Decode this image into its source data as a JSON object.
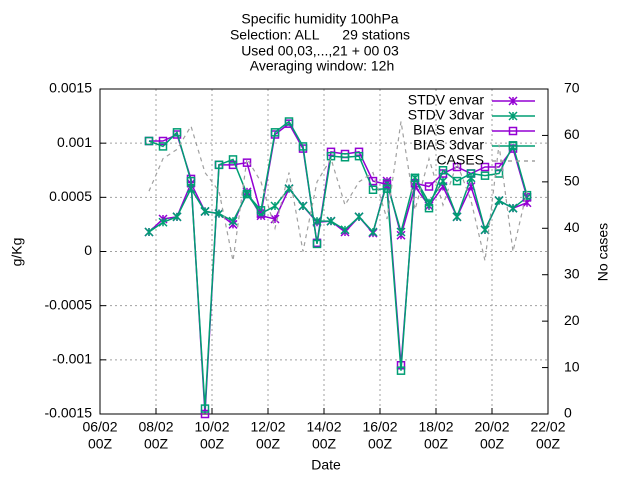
{
  "chart_data": {
    "type": "line",
    "title": [
      "Specific humidity 100hPa",
      "Selection: ALL      29 stations",
      "Used 00,03,...,21 + 00 03",
      "Averaging window: 12h"
    ],
    "xlabel": "Date",
    "ylabel": "g/Kg",
    "y2label": "No cases",
    "x": [
      "07/02 18Z",
      "08/02 06Z",
      "08/02 18Z",
      "09/02 06Z",
      "09/02 18Z",
      "10/02 06Z",
      "10/02 18Z",
      "11/02 06Z",
      "11/02 18Z",
      "12/02 06Z",
      "12/02 18Z",
      "13/02 06Z",
      "13/02 18Z",
      "14/02 06Z",
      "14/02 18Z",
      "15/02 06Z",
      "15/02 18Z",
      "16/02 06Z",
      "16/02 18Z",
      "17/02 06Z",
      "17/02 18Z",
      "18/02 06Z",
      "18/02 18Z",
      "19/02 06Z",
      "19/02 18Z",
      "20/02 06Z",
      "20/02 18Z",
      "21/02 06Z"
    ],
    "xlim": [
      "06/02 00Z",
      "22/02 00Z"
    ],
    "xticks": [
      {
        "value": "06/02 00Z",
        "label": [
          "06/02",
          "00Z"
        ]
      },
      {
        "value": "08/02 00Z",
        "label": [
          "08/02",
          "00Z"
        ]
      },
      {
        "value": "10/02 00Z",
        "label": [
          "10/02",
          "00Z"
        ]
      },
      {
        "value": "12/02 00Z",
        "label": [
          "12/02",
          "00Z"
        ]
      },
      {
        "value": "14/02 00Z",
        "label": [
          "14/02",
          "00Z"
        ]
      },
      {
        "value": "16/02 00Z",
        "label": [
          "16/02",
          "00Z"
        ]
      },
      {
        "value": "18/02 00Z",
        "label": [
          "18/02",
          "00Z"
        ]
      },
      {
        "value": "20/02 00Z",
        "label": [
          "20/02",
          "00Z"
        ]
      },
      {
        "value": "22/02 00Z",
        "label": [
          "22/02",
          "00Z"
        ]
      }
    ],
    "ylim": [
      -0.0015,
      0.0015
    ],
    "yticks": [
      -0.0015,
      -0.001,
      -0.0005,
      0,
      0.0005,
      0.001,
      0.0015
    ],
    "y2lim": [
      0,
      70
    ],
    "y2ticks": [
      0,
      10,
      20,
      30,
      40,
      50,
      60,
      70
    ],
    "grid": true,
    "legend": "top-right",
    "series": [
      {
        "name": "STDV envar",
        "color": "#9400d3",
        "marker": "x",
        "values": [
          0.00018,
          0.0003,
          0.00032,
          0.00063,
          0.00037,
          0.00035,
          0.00025,
          0.00055,
          0.00033,
          0.0003,
          0.00058,
          0.00042,
          0.00027,
          0.00028,
          0.00018,
          0.00032,
          0.00017,
          0.00065,
          0.00015,
          0.0006,
          0.00042,
          0.0006,
          0.00032,
          0.0006,
          0.0002,
          0.00047,
          0.0004,
          0.00045
        ]
      },
      {
        "name": "STDV 3dvar",
        "color": "#009e73",
        "marker": "x",
        "values": [
          0.00018,
          0.00027,
          0.00032,
          0.00058,
          0.00037,
          0.00035,
          0.00028,
          0.00053,
          0.00035,
          0.00042,
          0.00058,
          0.00042,
          0.00028,
          0.00028,
          0.0002,
          0.00032,
          0.00018,
          0.00063,
          0.00018,
          0.00068,
          0.00045,
          0.00065,
          0.00032,
          0.00068,
          0.0002,
          0.00047,
          0.0004,
          0.0005
        ]
      },
      {
        "name": "BIAS envar",
        "color": "#9400d3",
        "marker": "square",
        "values": [
          0.00102,
          0.00102,
          0.00108,
          0.00067,
          -0.0015,
          0.0008,
          0.0008,
          0.00082,
          0.00035,
          0.00108,
          0.00118,
          0.00095,
          8e-05,
          0.00092,
          0.0009,
          0.00092,
          0.00065,
          0.00062,
          -0.00105,
          0.00063,
          0.0006,
          0.00072,
          0.00078,
          0.00072,
          0.00078,
          0.00078,
          0.00095,
          0.0005
        ]
      },
      {
        "name": "BIAS 3dvar",
        "color": "#009e73",
        "marker": "square",
        "values": [
          0.00102,
          0.00097,
          0.0011,
          0.00065,
          -0.00145,
          0.0008,
          0.00085,
          0.00053,
          0.00038,
          0.0011,
          0.0012,
          0.00097,
          7e-05,
          0.00088,
          0.00087,
          0.00088,
          0.00057,
          0.00058,
          -0.0011,
          0.00068,
          0.0004,
          0.00075,
          0.00065,
          0.00072,
          0.0007,
          0.00072,
          0.00098,
          0.00052
        ]
      },
      {
        "name": "CASES",
        "color": "#a0a0a0",
        "axis": "y2",
        "dashed": true,
        "values": [
          48,
          55,
          57,
          62,
          52,
          48,
          33,
          55,
          50,
          40,
          52,
          35,
          50,
          55,
          45,
          50,
          52,
          42,
          63,
          44,
          55,
          45,
          54,
          46,
          33,
          58,
          35,
          48
        ]
      }
    ]
  }
}
